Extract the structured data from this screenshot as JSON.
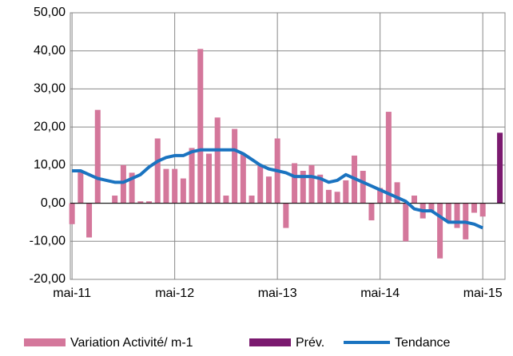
{
  "chart_data": {
    "type": "bar_line",
    "xlim": [
      -0.2,
      50.6
    ],
    "xticks": [
      {
        "value": 0,
        "label": "mai-11"
      },
      {
        "value": 12,
        "label": "mai-12"
      },
      {
        "value": 24,
        "label": "mai-13"
      },
      {
        "value": 36,
        "label": "mai-14"
      },
      {
        "value": 48,
        "label": "mai-15"
      }
    ],
    "ylim": [
      -20,
      50
    ],
    "yticks": [
      {
        "value": -20,
        "label": "-20,00"
      },
      {
        "value": -10,
        "label": "-10,00"
      },
      {
        "value": 0,
        "label": "0,00"
      },
      {
        "value": 10,
        "label": "10,00"
      },
      {
        "value": 20,
        "label": "20,00"
      },
      {
        "value": 30,
        "label": "30,00"
      },
      {
        "value": 40,
        "label": "40,00"
      },
      {
        "value": 50,
        "label": "50,00"
      }
    ],
    "grid": true,
    "series": [
      {
        "name": "Variation Activité/ m-1",
        "kind": "bar",
        "color": "#d4779b",
        "x": [
          0,
          1,
          2,
          3,
          5,
          6,
          7,
          8,
          9,
          10,
          11,
          12,
          13,
          14,
          15,
          16,
          17,
          18,
          19,
          20,
          21,
          22,
          23,
          24,
          25,
          26,
          27,
          28,
          29,
          30,
          31,
          32,
          33,
          34,
          35,
          36,
          37,
          38,
          39,
          40,
          41,
          42,
          43,
          44,
          45,
          46,
          47,
          48
        ],
        "values": [
          -5.5,
          8.5,
          -9,
          24.5,
          2,
          10,
          8,
          0.5,
          0.5,
          17,
          9,
          9,
          6.5,
          14.5,
          40.5,
          13,
          22.5,
          2,
          19.5,
          13,
          2,
          10,
          7,
          17,
          -6.5,
          10.5,
          8.5,
          10,
          7.5,
          3.5,
          3,
          6,
          12.5,
          8.5,
          -4.5,
          4,
          24,
          5.5,
          -10,
          2,
          -4,
          -2,
          -14.5,
          -5,
          -6.5,
          -9.5,
          -2.5,
          -3.5
        ]
      },
      {
        "name": "Prév.",
        "kind": "bar",
        "color": "#7b1a6f",
        "x": [
          50
        ],
        "values": [
          18.5
        ]
      },
      {
        "name": "Tendance",
        "kind": "line",
        "color": "#1a73c0",
        "x": [
          0,
          1,
          2,
          3,
          4,
          5,
          6,
          7,
          8,
          9,
          10,
          11,
          12,
          13,
          14,
          15,
          16,
          17,
          18,
          19,
          20,
          21,
          22,
          23,
          24,
          25,
          26,
          27,
          28,
          29,
          30,
          31,
          32,
          33,
          34,
          35,
          36,
          37,
          38,
          39,
          40,
          41,
          42,
          43,
          44,
          45,
          46,
          47,
          48
        ],
        "values": [
          8.5,
          8.5,
          7.5,
          6.5,
          6,
          5.5,
          5.5,
          6.5,
          7.5,
          9.5,
          11,
          12,
          12.5,
          12.5,
          13.5,
          14,
          14,
          14,
          14,
          14,
          13,
          11.5,
          10,
          9,
          8.5,
          8,
          7,
          7,
          7,
          6.5,
          5.5,
          6,
          7.5,
          6.5,
          5.5,
          4.5,
          3.5,
          2.5,
          1.5,
          0.5,
          -1.5,
          -2,
          -2,
          -3.5,
          -5,
          -5,
          -5,
          -5.5,
          -6.5
        ]
      }
    ]
  }
}
